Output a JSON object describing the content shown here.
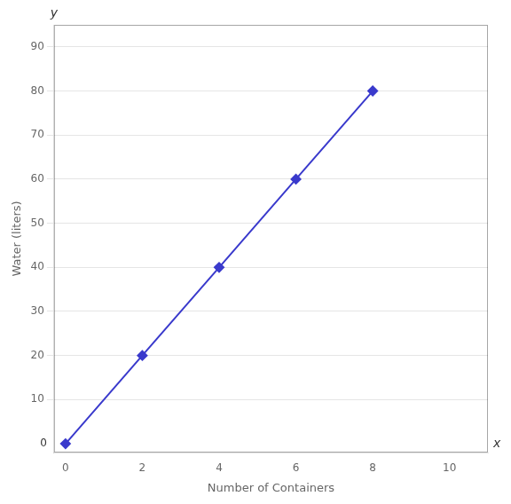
{
  "chart_data": {
    "type": "line",
    "x_label": "Number of Containers",
    "y_label": "Water (liters)",
    "x": [
      0,
      2,
      4,
      6,
      8
    ],
    "values": [
      0,
      20,
      40,
      60,
      80
    ],
    "color": "#3a3acc",
    "marker": "diamond",
    "xlim": [
      -0.3,
      11
    ],
    "ylim": [
      -2,
      95
    ],
    "xticks": [
      0,
      2,
      4,
      6,
      8,
      10
    ],
    "yticks": [
      10,
      20,
      30,
      40,
      50,
      60,
      70,
      80,
      90
    ],
    "grid": "y",
    "annotations": [
      "x",
      "y",
      "0"
    ]
  }
}
